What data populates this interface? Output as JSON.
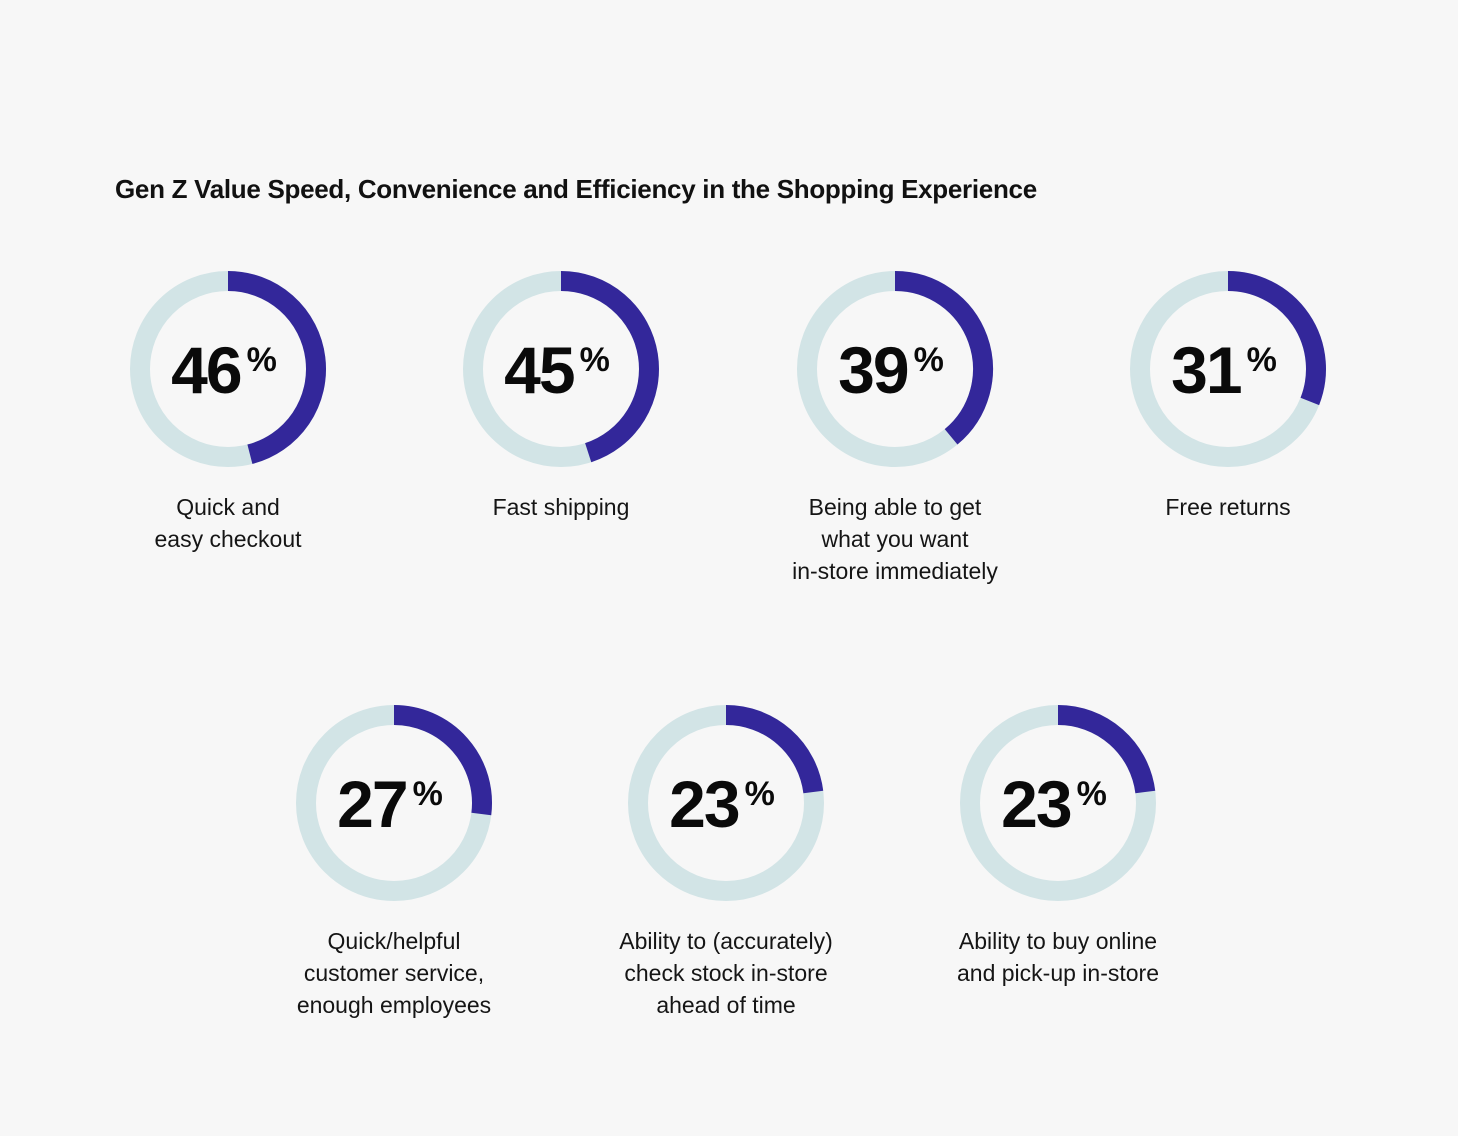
{
  "chart_data": {
    "type": "donut",
    "title": "Gen Z Value Speed, Convenience and Efficiency in the Shopping Experience",
    "unit": "%",
    "max": 100,
    "colors": {
      "fill": "#33279a",
      "track": "#d2e4e6"
    },
    "items": [
      {
        "value": 46,
        "label": "Quick and\neasy checkout"
      },
      {
        "value": 45,
        "label": "Fast shipping"
      },
      {
        "value": 39,
        "label": "Being able to get\nwhat you want\nin-store immediately"
      },
      {
        "value": 31,
        "label": "Free returns"
      },
      {
        "value": 27,
        "label": "Quick/helpful\ncustomer service,\nenough employees"
      },
      {
        "value": 23,
        "label": "Ability to (accurately)\ncheck stock in-store\nahead of time"
      },
      {
        "value": 23,
        "label": "Ability to buy online\nand pick-up in-store"
      }
    ]
  }
}
